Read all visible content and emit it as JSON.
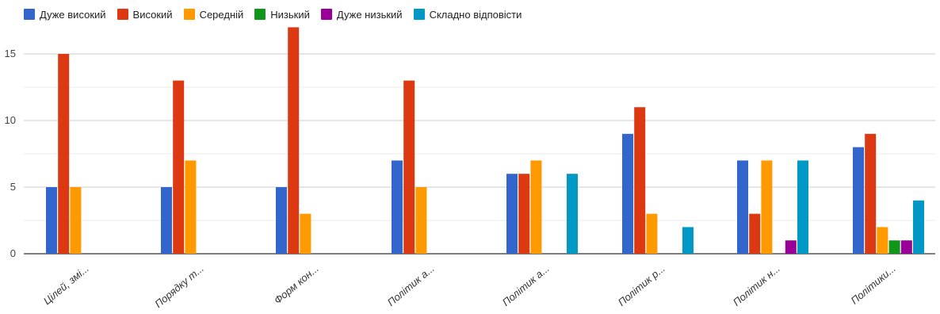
{
  "chart_data": {
    "type": "bar",
    "categories": [
      "Цілей, змі...",
      "Порядку т...",
      "Форм кон...",
      "Політик а...",
      "Політик а...",
      "Політик р...",
      "Політик н...",
      "Політики..."
    ],
    "series": [
      {
        "name": "Дуже високий",
        "color": "#3366cc",
        "values": [
          5,
          5,
          5,
          7,
          6,
          9,
          7,
          8
        ]
      },
      {
        "name": "Високий",
        "color": "#dc3912",
        "values": [
          15,
          13,
          17,
          13,
          6,
          11,
          3,
          9
        ]
      },
      {
        "name": "Середній",
        "color": "#ff9900",
        "values": [
          5,
          7,
          3,
          5,
          7,
          3,
          7,
          2
        ]
      },
      {
        "name": "Низький",
        "color": "#109618",
        "values": [
          0,
          0,
          0,
          0,
          0,
          0,
          0,
          1
        ]
      },
      {
        "name": "Дуже низький",
        "color": "#990099",
        "values": [
          0,
          0,
          0,
          0,
          0,
          0,
          1,
          1
        ]
      },
      {
        "name": "Складно відповісти",
        "color": "#0099c6",
        "values": [
          0,
          0,
          0,
          0,
          6,
          2,
          7,
          4
        ]
      }
    ],
    "yticks": [
      0,
      5,
      10,
      15
    ],
    "ylim": [
      0,
      17
    ],
    "legend_position": "top-left",
    "grid": true
  }
}
